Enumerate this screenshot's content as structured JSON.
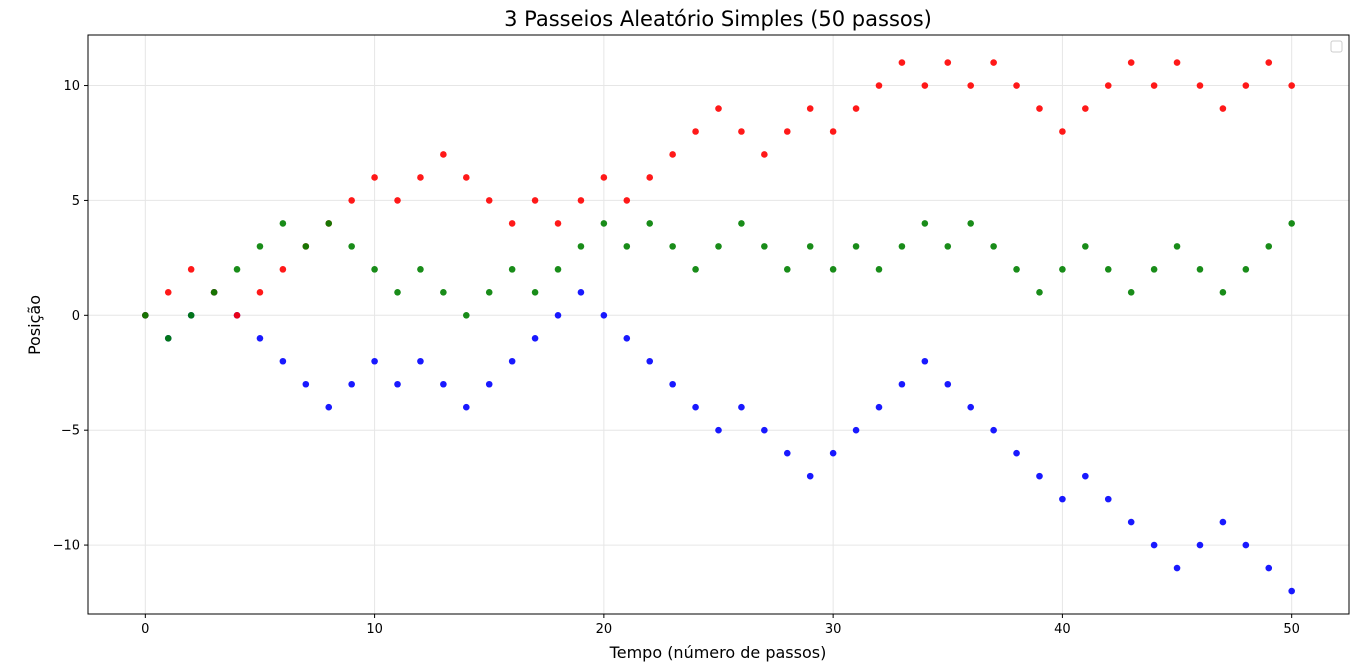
{
  "chart_data": {
    "type": "scatter",
    "title": "3 Passeios Aleatório Simples  (50 passos)",
    "xlabel": "Tempo (número de passos)",
    "ylabel": "Posição",
    "xlim": [
      -2.5,
      52.5
    ],
    "ylim": [
      -13,
      12.2
    ],
    "xticks": [
      0,
      10,
      20,
      30,
      40,
      50
    ],
    "yticks": [
      -10,
      -5,
      0,
      5,
      10
    ],
    "ytick_labels": [
      "−10",
      "−5",
      "0",
      "5",
      "10"
    ],
    "grid": true,
    "legend": "upper-right (empty)",
    "x": [
      0,
      1,
      2,
      3,
      4,
      5,
      6,
      7,
      8,
      9,
      10,
      11,
      12,
      13,
      14,
      15,
      16,
      17,
      18,
      19,
      20,
      21,
      22,
      23,
      24,
      25,
      26,
      27,
      28,
      29,
      30,
      31,
      32,
      33,
      34,
      35,
      36,
      37,
      38,
      39,
      40,
      41,
      42,
      43,
      44,
      45,
      46,
      47,
      48,
      49,
      50
    ],
    "series": [
      {
        "color": "#0000ff",
        "values": [
          0,
          -1,
          0,
          1,
          0,
          -1,
          -2,
          -3,
          -4,
          -3,
          -2,
          -3,
          -2,
          -3,
          -4,
          -3,
          -2,
          -1,
          0,
          1,
          0,
          -1,
          -2,
          -3,
          -4,
          -5,
          -4,
          -5,
          -6,
          -7,
          -6,
          -5,
          -4,
          -3,
          -2,
          -3,
          -4,
          -5,
          -6,
          -7,
          -8,
          -7,
          -8,
          -9,
          -10,
          -11,
          -10,
          -9,
          -10,
          -11,
          -12
        ]
      },
      {
        "color": "#ff0000",
        "values": [
          0,
          1,
          2,
          1,
          0,
          1,
          2,
          3,
          4,
          5,
          6,
          5,
          6,
          7,
          6,
          5,
          4,
          5,
          4,
          5,
          6,
          5,
          6,
          7,
          8,
          9,
          8,
          7,
          8,
          9,
          8,
          9,
          10,
          11,
          10,
          11,
          10,
          11,
          10,
          9,
          8,
          9,
          10,
          11,
          10,
          11,
          10,
          9,
          10,
          11,
          10
        ]
      },
      {
        "color": "#008000",
        "values": [
          0,
          -1,
          0,
          1,
          2,
          3,
          4,
          3,
          4,
          3,
          2,
          1,
          2,
          1,
          0,
          1,
          2,
          1,
          2,
          3,
          4,
          3,
          4,
          3,
          2,
          3,
          4,
          3,
          2,
          3,
          2,
          3,
          2,
          3,
          4,
          3,
          4,
          3,
          2,
          1,
          2,
          3,
          2,
          1,
          2,
          3,
          2,
          1,
          2,
          3,
          4
        ]
      }
    ]
  }
}
